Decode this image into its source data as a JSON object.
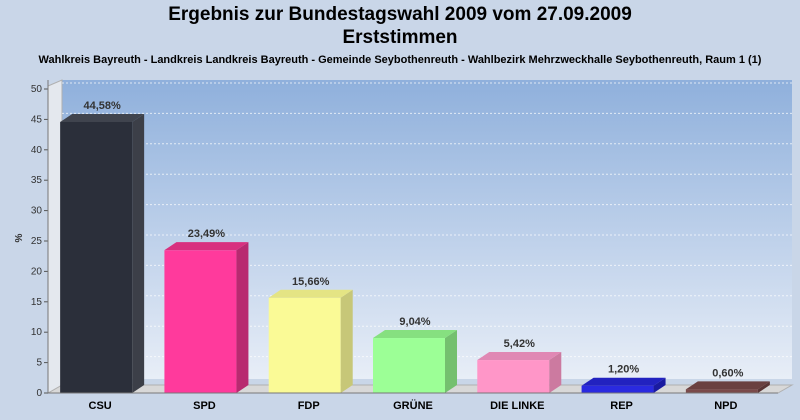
{
  "chart_data": {
    "type": "bar",
    "title": "Ergebnis zur Bundestagswahl 2009 vom 27.09.2009",
    "subtitle": "Erststimmen",
    "caption": "Wahlkreis Bayreuth - Landkreis Landkreis Bayreuth - Gemeinde Seybothenreuth - Wahlbezirk Mehrzweckhalle Seybothenreuth, Raum 1 (1)",
    "ylabel": "%",
    "ylim": [
      0,
      50
    ],
    "yticks": [
      0,
      5,
      10,
      15,
      20,
      25,
      30,
      35,
      40,
      45,
      50
    ],
    "grid": true,
    "categories": [
      "CSU",
      "SPD",
      "FDP",
      "GRÜNE",
      "DIE LINKE",
      "REP",
      "NPD"
    ],
    "values": [
      44.58,
      23.49,
      15.66,
      9.04,
      5.42,
      1.2,
      0.6
    ],
    "value_labels": [
      "44,58%",
      "23,49%",
      "15,66%",
      "9,04%",
      "5,42%",
      "1,20%",
      "0,60%"
    ],
    "colors": [
      "#2b2f3a",
      "#ff3a9c",
      "#fafa96",
      "#9cff96",
      "#ff96c8",
      "#2a2ae0",
      "#7a4a4a"
    ],
    "side_colors": [
      "#3c3f48",
      "#b82a70",
      "#c7c778",
      "#74c06f",
      "#cc7aa0",
      "#1a1aa0",
      "#5a3535"
    ],
    "top_colors": [
      "#40444e",
      "#d8307f",
      "#e4e484",
      "#86e080",
      "#e088b4",
      "#2222c0",
      "#6a4040"
    ]
  }
}
